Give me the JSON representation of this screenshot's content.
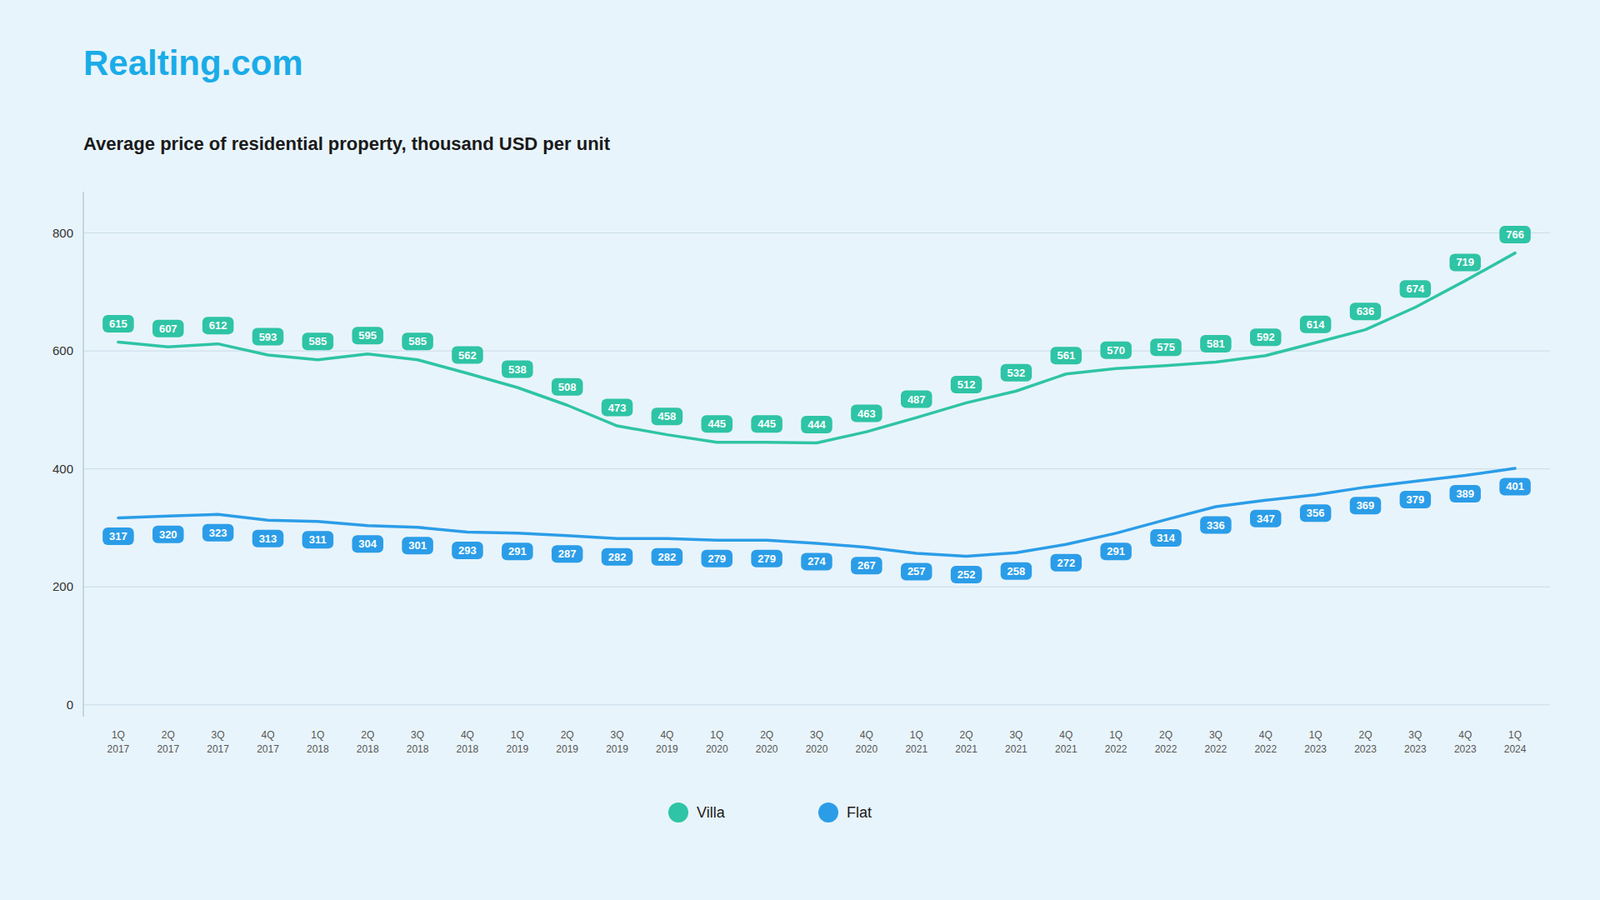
{
  "chart_data": {
    "type": "line",
    "title": "Average price of residential property, thousand USD per unit",
    "annotations": [
      "Realting.com"
    ],
    "categories": [
      "1Q\n2017",
      "2Q\n2017",
      "3Q\n2017",
      "4Q\n2017",
      "1Q\n2018",
      "2Q\n2018",
      "3Q\n2018",
      "4Q\n2018",
      "1Q\n2019",
      "2Q\n2019",
      "3Q\n2019",
      "4Q\n2019",
      "1Q\n2020",
      "2Q\n2020",
      "3Q\n2020",
      "4Q\n2020",
      "1Q\n2021",
      "2Q\n2021",
      "3Q\n2021",
      "4Q\n2021",
      "1Q\n2022",
      "2Q\n2022",
      "3Q\n2022",
      "4Q\n2022",
      "1Q\n2023",
      "2Q\n2023",
      "3Q\n2023",
      "4Q\n2023",
      "1Q\n2024"
    ],
    "series": [
      {
        "name": "Villa",
        "color": "#2ec4a5",
        "values": [
          615,
          607,
          612,
          593,
          585,
          595,
          585,
          562,
          538,
          508,
          473,
          458,
          445,
          445,
          444,
          463,
          487,
          512,
          532,
          561,
          570,
          575,
          581,
          592,
          614,
          636,
          674,
          719,
          766
        ]
      },
      {
        "name": "Flat",
        "color": "#2b9de8",
        "values": [
          317,
          320,
          323,
          313,
          311,
          304,
          301,
          293,
          291,
          287,
          282,
          282,
          279,
          279,
          274,
          267,
          257,
          252,
          258,
          272,
          291,
          314,
          336,
          347,
          356,
          369,
          379,
          389,
          401
        ]
      }
    ],
    "ylim": [
      -20,
      870
    ],
    "yticks": [
      0,
      200,
      400,
      600,
      800
    ],
    "grid": true,
    "data_labels": true,
    "legend": "bottom"
  }
}
